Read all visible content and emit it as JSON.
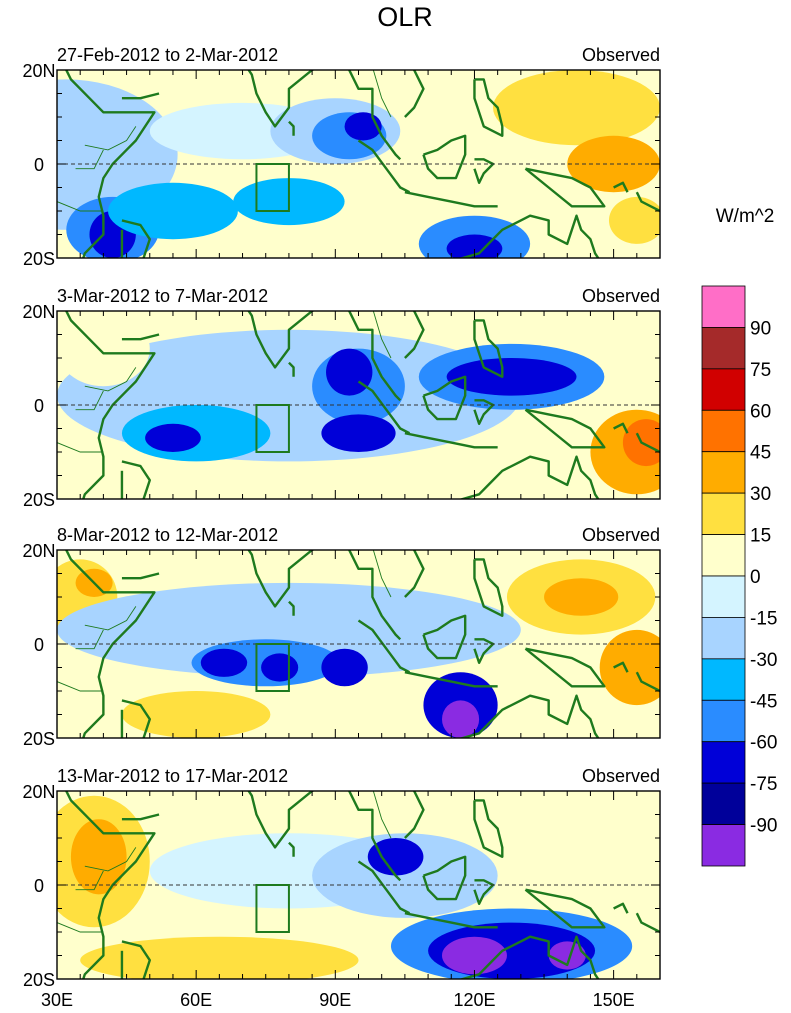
{
  "chart_data": {
    "type": "heatmap",
    "title": "OLR",
    "units_label": "W/m^2",
    "lon_ticks": [
      "30E",
      "60E",
      "90E",
      "120E",
      "150E"
    ],
    "lon_values": [
      30,
      60,
      90,
      120,
      150
    ],
    "lat_ticks": [
      "20N",
      "0",
      "20S"
    ],
    "lat_values": [
      20,
      0,
      -20
    ],
    "xlim": [
      30,
      160
    ],
    "ylim": [
      -20,
      20
    ],
    "colorbar": {
      "labels": [
        "90",
        "75",
        "60",
        "45",
        "30",
        "15",
        "0",
        "-15",
        "-30",
        "-45",
        "-60",
        "-75",
        "-90"
      ],
      "colors": [
        "#ff6ec7",
        "#a52a2a",
        "#d10000",
        "#ff7200",
        "#ffac00",
        "#ffe040",
        "#ffffcc",
        "#d4f4ff",
        "#a8d4ff",
        "#00b8ff",
        "#2a8cff",
        "#0000d8",
        "#00009a",
        "#8a2be2"
      ]
    },
    "panels": [
      {
        "period": "27-Feb-2012 to 2-Mar-2012",
        "label": "Observed",
        "features": [
          {
            "lon": 32,
            "lat": 2,
            "rx": 24,
            "ry": 16,
            "color": "#a8d4ff"
          },
          {
            "lon": 42,
            "lat": -14,
            "rx": 10,
            "ry": 7,
            "color": "#2a8cff"
          },
          {
            "lon": 42,
            "lat": -15,
            "rx": 5,
            "ry": 5,
            "color": "#0000d8"
          },
          {
            "lon": 55,
            "lat": -10,
            "rx": 14,
            "ry": 6,
            "color": "#00b8ff"
          },
          {
            "lon": 70,
            "lat": 7,
            "rx": 20,
            "ry": 6,
            "color": "#d4f4ff"
          },
          {
            "lon": 80,
            "lat": -8,
            "rx": 12,
            "ry": 5,
            "color": "#00b8ff"
          },
          {
            "lon": 90,
            "lat": 7,
            "rx": 14,
            "ry": 7,
            "color": "#a8d4ff"
          },
          {
            "lon": 93,
            "lat": 6,
            "rx": 8,
            "ry": 5,
            "color": "#2a8cff"
          },
          {
            "lon": 96,
            "lat": 8,
            "rx": 4,
            "ry": 3,
            "color": "#0000d8"
          },
          {
            "lon": 120,
            "lat": -17,
            "rx": 12,
            "ry": 6,
            "color": "#2a8cff"
          },
          {
            "lon": 120,
            "lat": -18,
            "rx": 6,
            "ry": 3,
            "color": "#0000d8"
          },
          {
            "lon": 142,
            "lat": 12,
            "rx": 18,
            "ry": 8,
            "color": "#ffe040"
          },
          {
            "lon": 150,
            "lat": 0,
            "rx": 10,
            "ry": 6,
            "color": "#ffac00"
          },
          {
            "lon": 155,
            "lat": -12,
            "rx": 6,
            "ry": 5,
            "color": "#ffe040"
          }
        ]
      },
      {
        "period": "3-Mar-2012 to 7-Mar-2012",
        "label": "Observed",
        "features": [
          {
            "lon": 80,
            "lat": 2,
            "rx": 50,
            "ry": 14,
            "color": "#a8d4ff"
          },
          {
            "lon": 60,
            "lat": -6,
            "rx": 16,
            "ry": 6,
            "color": "#00b8ff"
          },
          {
            "lon": 55,
            "lat": -7,
            "rx": 6,
            "ry": 3,
            "color": "#0000d8"
          },
          {
            "lon": 95,
            "lat": 4,
            "rx": 10,
            "ry": 8,
            "color": "#2a8cff"
          },
          {
            "lon": 93,
            "lat": 7,
            "rx": 5,
            "ry": 5,
            "color": "#0000d8"
          },
          {
            "lon": 95,
            "lat": -6,
            "rx": 8,
            "ry": 4,
            "color": "#0000d8"
          },
          {
            "lon": 128,
            "lat": 6,
            "rx": 20,
            "ry": 7,
            "color": "#2a8cff"
          },
          {
            "lon": 128,
            "lat": 6,
            "rx": 14,
            "ry": 4,
            "color": "#0000d8"
          },
          {
            "lon": 155,
            "lat": -10,
            "rx": 10,
            "ry": 9,
            "color": "#ffac00"
          },
          {
            "lon": 157,
            "lat": -8,
            "rx": 5,
            "ry": 5,
            "color": "#ff7200"
          },
          {
            "lon": 40,
            "lat": 12,
            "rx": 10,
            "ry": 8,
            "color": "#ffffcc"
          }
        ]
      },
      {
        "period": "8-Mar-2012 to 12-Mar-2012",
        "label": "Observed",
        "features": [
          {
            "lon": 35,
            "lat": 10,
            "rx": 8,
            "ry": 8,
            "color": "#ffe040"
          },
          {
            "lon": 38,
            "lat": 13,
            "rx": 4,
            "ry": 3,
            "color": "#ffac00"
          },
          {
            "lon": 60,
            "lat": -15,
            "rx": 16,
            "ry": 5,
            "color": "#ffe040"
          },
          {
            "lon": 80,
            "lat": 3,
            "rx": 50,
            "ry": 10,
            "color": "#a8d4ff"
          },
          {
            "lon": 75,
            "lat": -4,
            "rx": 16,
            "ry": 5,
            "color": "#2a8cff"
          },
          {
            "lon": 66,
            "lat": -4,
            "rx": 5,
            "ry": 3,
            "color": "#0000d8"
          },
          {
            "lon": 78,
            "lat": -5,
            "rx": 4,
            "ry": 3,
            "color": "#0000d8"
          },
          {
            "lon": 92,
            "lat": -5,
            "rx": 5,
            "ry": 4,
            "color": "#0000d8"
          },
          {
            "lon": 117,
            "lat": -13,
            "rx": 8,
            "ry": 7,
            "color": "#0000d8"
          },
          {
            "lon": 117,
            "lat": -16,
            "rx": 4,
            "ry": 4,
            "color": "#8a2be2"
          },
          {
            "lon": 143,
            "lat": 10,
            "rx": 16,
            "ry": 8,
            "color": "#ffe040"
          },
          {
            "lon": 143,
            "lat": 10,
            "rx": 8,
            "ry": 4,
            "color": "#ffac00"
          },
          {
            "lon": 155,
            "lat": -5,
            "rx": 8,
            "ry": 8,
            "color": "#ffac00"
          }
        ]
      },
      {
        "period": "13-Mar-2012 to 17-Mar-2012",
        "label": "Observed",
        "features": [
          {
            "lon": 38,
            "lat": 5,
            "rx": 12,
            "ry": 14,
            "color": "#ffe040"
          },
          {
            "lon": 39,
            "lat": 6,
            "rx": 6,
            "ry": 8,
            "color": "#ffac00"
          },
          {
            "lon": 65,
            "lat": -16,
            "rx": 30,
            "ry": 5,
            "color": "#ffe040"
          },
          {
            "lon": 80,
            "lat": 3,
            "rx": 30,
            "ry": 8,
            "color": "#d4f4ff"
          },
          {
            "lon": 105,
            "lat": 2,
            "rx": 20,
            "ry": 9,
            "color": "#a8d4ff"
          },
          {
            "lon": 103,
            "lat": 6,
            "rx": 6,
            "ry": 4,
            "color": "#0000d8"
          },
          {
            "lon": 128,
            "lat": -13,
            "rx": 26,
            "ry": 8,
            "color": "#2a8cff"
          },
          {
            "lon": 128,
            "lat": -14,
            "rx": 18,
            "ry": 6,
            "color": "#0000d8"
          },
          {
            "lon": 120,
            "lat": -15,
            "rx": 7,
            "ry": 4,
            "color": "#8a2be2"
          },
          {
            "lon": 140,
            "lat": -15,
            "rx": 4,
            "ry": 3,
            "color": "#8a2be2"
          },
          {
            "lon": 150,
            "lat": 4,
            "rx": 10,
            "ry": 8,
            "color": "#ffffcc"
          }
        ]
      }
    ]
  }
}
